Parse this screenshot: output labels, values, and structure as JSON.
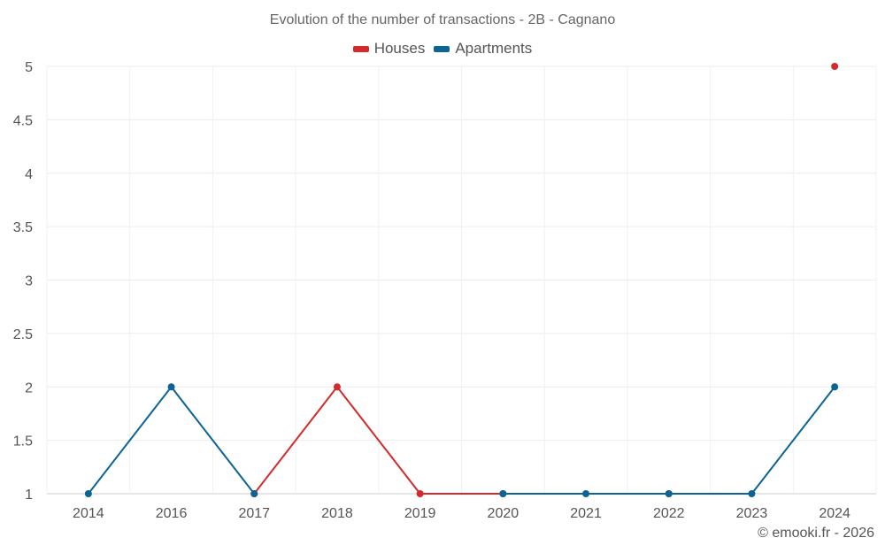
{
  "chart_data": {
    "type": "line",
    "title": "Evolution of the number of transactions - 2B - Cagnano",
    "categories": [
      "2014",
      "2016",
      "2017",
      "2018",
      "2019",
      "2020",
      "2021",
      "2022",
      "2023",
      "2024"
    ],
    "ylim": [
      1,
      5
    ],
    "yticks": [
      "1",
      "1.5",
      "2",
      "2.5",
      "3",
      "3.5",
      "4",
      "4.5",
      "5"
    ],
    "grid": true,
    "legend_position": "top-center",
    "series": [
      {
        "name": "Houses",
        "color": "#d42a2a",
        "values": [
          null,
          null,
          1,
          2,
          1,
          1,
          null,
          1,
          null,
          5
        ]
      },
      {
        "name": "Apartments",
        "color": "#0b6396",
        "values": [
          1,
          2,
          1,
          null,
          null,
          1,
          1,
          1,
          1,
          2
        ]
      }
    ]
  },
  "credit": "© emooki.fr - 2026"
}
